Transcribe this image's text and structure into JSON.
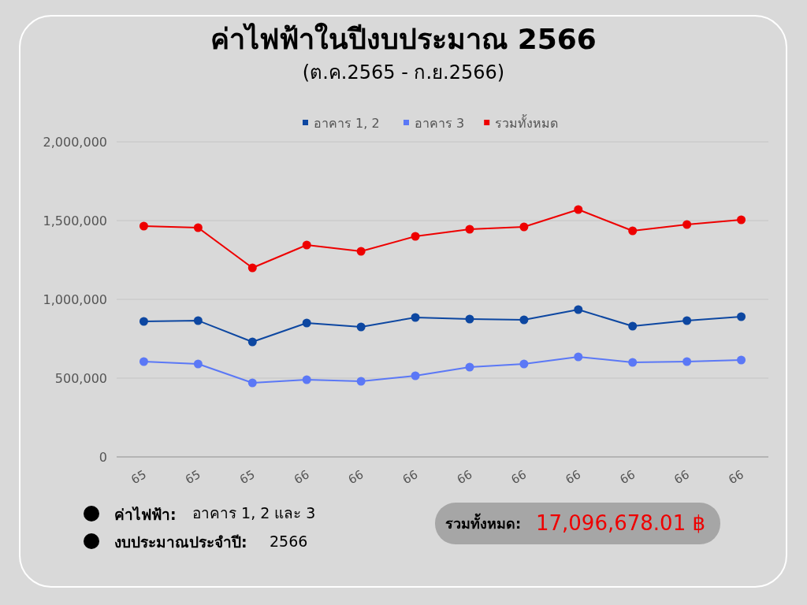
{
  "chart_data": {
    "type": "line",
    "title": "ค่าไฟฟ้าในปีงบประมาณ 2566",
    "subtitle": "(ต.ค.2565 - ก.ย.2566)",
    "categories": [
      "65",
      "65",
      "65",
      "66",
      "66",
      "66",
      "66",
      "66",
      "66",
      "66",
      "66",
      "66"
    ],
    "series": [
      {
        "name": "อาคาร 1, 2",
        "color": "#0d47a1",
        "values": [
          860000,
          865000,
          730000,
          850000,
          825000,
          885000,
          875000,
          870000,
          935000,
          830000,
          865000,
          890000
        ]
      },
      {
        "name": "อาคาร 3",
        "color": "#5b78f6",
        "values": [
          605000,
          590000,
          470000,
          490000,
          480000,
          515000,
          570000,
          590000,
          635000,
          600000,
          605000,
          615000
        ]
      },
      {
        "name": "รวมทั้งหมด",
        "color": "#ee0000",
        "values": [
          1465000,
          1455000,
          1200000,
          1345000,
          1305000,
          1400000,
          1445000,
          1460000,
          1570000,
          1435000,
          1475000,
          1505000
        ]
      }
    ],
    "ylim": [
      0,
      2000000
    ],
    "yticks": [
      {
        "value": 0,
        "label": "0"
      },
      {
        "value": 500000,
        "label": "500,000"
      },
      {
        "value": 1000000,
        "label": "1,000,000"
      },
      {
        "value": 1500000,
        "label": "1,500,000"
      },
      {
        "value": 2000000,
        "label": "2,000,000"
      }
    ],
    "grid": "y",
    "legend": "top",
    "marker": "circle",
    "line_style": "solid",
    "annotations": [
      "ค่าไฟฟ้า:",
      "อาคาร 1, 2 และ 3",
      "งบประมาณประจำปี:",
      "2566",
      "รวมทั้งหมด:",
      "17,096,678.01 ฿"
    ]
  }
}
